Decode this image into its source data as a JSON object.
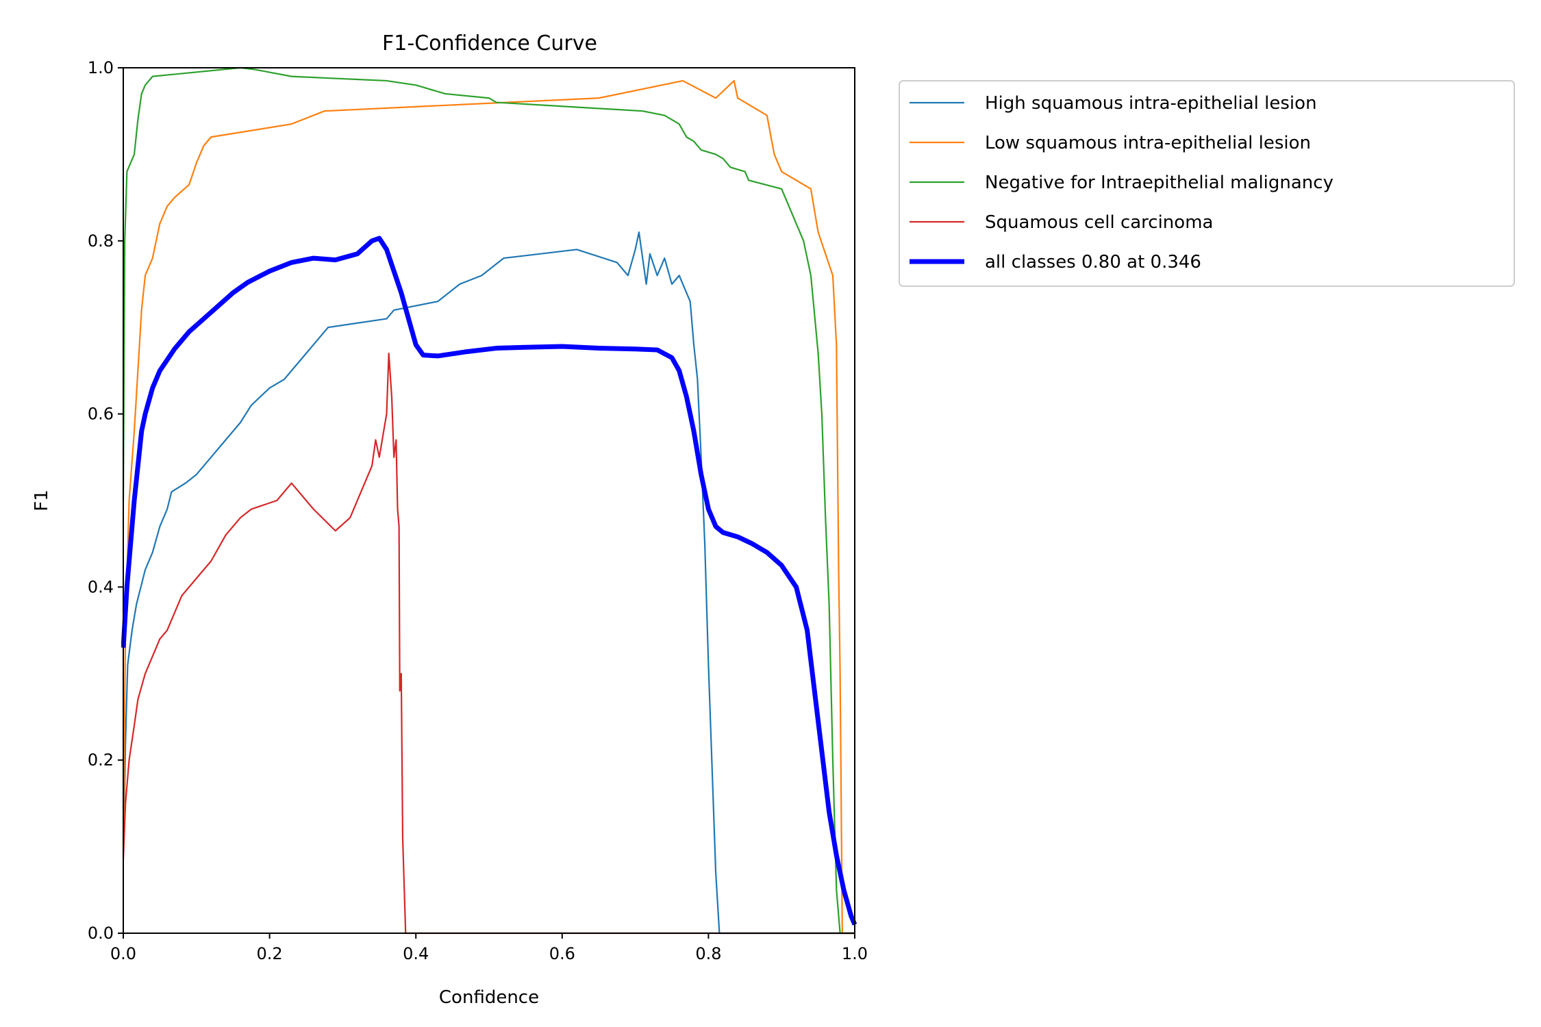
{
  "chart_data": {
    "type": "line",
    "title": "F1-Confidence Curve",
    "xlabel": "Confidence",
    "ylabel": "F1",
    "xlim": [
      0,
      1
    ],
    "ylim": [
      0,
      1
    ],
    "xticks": [
      "0.0",
      "0.2",
      "0.4",
      "0.6",
      "0.8",
      "1.0"
    ],
    "yticks": [
      "0.0",
      "0.2",
      "0.4",
      "0.6",
      "0.8",
      "1.0"
    ],
    "grid": false,
    "legend_position": "outside-right",
    "series": [
      {
        "name": "High squamous intra-epithelial lesion",
        "color": "#1f77b4",
        "width": "thin",
        "points": [
          [
            0.0,
            0.09
          ],
          [
            0.003,
            0.22
          ],
          [
            0.006,
            0.31
          ],
          [
            0.012,
            0.35
          ],
          [
            0.018,
            0.38
          ],
          [
            0.024,
            0.4
          ],
          [
            0.03,
            0.42
          ],
          [
            0.04,
            0.44
          ],
          [
            0.05,
            0.47
          ],
          [
            0.06,
            0.49
          ],
          [
            0.066,
            0.51
          ],
          [
            0.085,
            0.52
          ],
          [
            0.1,
            0.53
          ],
          [
            0.12,
            0.55
          ],
          [
            0.14,
            0.57
          ],
          [
            0.16,
            0.59
          ],
          [
            0.175,
            0.61
          ],
          [
            0.2,
            0.63
          ],
          [
            0.22,
            0.64
          ],
          [
            0.24,
            0.66
          ],
          [
            0.25,
            0.67
          ],
          [
            0.28,
            0.7
          ],
          [
            0.36,
            0.71
          ],
          [
            0.37,
            0.72
          ],
          [
            0.43,
            0.73
          ],
          [
            0.46,
            0.75
          ],
          [
            0.49,
            0.76
          ],
          [
            0.52,
            0.78
          ],
          [
            0.62,
            0.79
          ],
          [
            0.675,
            0.775
          ],
          [
            0.69,
            0.76
          ],
          [
            0.7,
            0.79
          ],
          [
            0.705,
            0.81
          ],
          [
            0.715,
            0.75
          ],
          [
            0.72,
            0.785
          ],
          [
            0.73,
            0.76
          ],
          [
            0.74,
            0.78
          ],
          [
            0.75,
            0.75
          ],
          [
            0.76,
            0.76
          ],
          [
            0.77,
            0.74
          ],
          [
            0.775,
            0.73
          ],
          [
            0.777,
            0.71
          ],
          [
            0.78,
            0.68
          ],
          [
            0.785,
            0.64
          ],
          [
            0.79,
            0.55
          ],
          [
            0.795,
            0.45
          ],
          [
            0.8,
            0.31
          ],
          [
            0.805,
            0.19
          ],
          [
            0.81,
            0.07
          ],
          [
            0.815,
            0.0
          ],
          [
            1.0,
            0.0
          ]
        ]
      },
      {
        "name": "Low squamous intra-epithelial lesion",
        "color": "#ff7f0e",
        "width": "thin",
        "points": [
          [
            0.0,
            0.1
          ],
          [
            0.003,
            0.35
          ],
          [
            0.008,
            0.5
          ],
          [
            0.015,
            0.58
          ],
          [
            0.02,
            0.65
          ],
          [
            0.025,
            0.72
          ],
          [
            0.03,
            0.76
          ],
          [
            0.04,
            0.78
          ],
          [
            0.05,
            0.82
          ],
          [
            0.06,
            0.84
          ],
          [
            0.07,
            0.85
          ],
          [
            0.09,
            0.865
          ],
          [
            0.1,
            0.89
          ],
          [
            0.11,
            0.91
          ],
          [
            0.12,
            0.92
          ],
          [
            0.23,
            0.935
          ],
          [
            0.275,
            0.95
          ],
          [
            0.65,
            0.965
          ],
          [
            0.765,
            0.985
          ],
          [
            0.81,
            0.965
          ],
          [
            0.835,
            0.985
          ],
          [
            0.84,
            0.965
          ],
          [
            0.88,
            0.945
          ],
          [
            0.89,
            0.9
          ],
          [
            0.9,
            0.88
          ],
          [
            0.94,
            0.86
          ],
          [
            0.95,
            0.81
          ],
          [
            0.97,
            0.76
          ],
          [
            0.975,
            0.68
          ],
          [
            0.978,
            0.42
          ],
          [
            0.98,
            0.3
          ],
          [
            0.983,
            0.0
          ],
          [
            1.0,
            0.0
          ]
        ]
      },
      {
        "name": "Negative for Intraepithelial malignancy",
        "color": "#2ca02c",
        "width": "thin",
        "points": [
          [
            0.0,
            0.5
          ],
          [
            0.002,
            0.8
          ],
          [
            0.005,
            0.88
          ],
          [
            0.01,
            0.89
          ],
          [
            0.015,
            0.9
          ],
          [
            0.02,
            0.94
          ],
          [
            0.025,
            0.97
          ],
          [
            0.03,
            0.98
          ],
          [
            0.04,
            0.99
          ],
          [
            0.16,
            1.0
          ],
          [
            0.18,
            0.998
          ],
          [
            0.23,
            0.99
          ],
          [
            0.36,
            0.985
          ],
          [
            0.4,
            0.98
          ],
          [
            0.44,
            0.97
          ],
          [
            0.5,
            0.965
          ],
          [
            0.51,
            0.96
          ],
          [
            0.71,
            0.95
          ],
          [
            0.74,
            0.945
          ],
          [
            0.75,
            0.94
          ],
          [
            0.76,
            0.935
          ],
          [
            0.77,
            0.92
          ],
          [
            0.78,
            0.915
          ],
          [
            0.79,
            0.905
          ],
          [
            0.81,
            0.9
          ],
          [
            0.82,
            0.895
          ],
          [
            0.83,
            0.885
          ],
          [
            0.85,
            0.88
          ],
          [
            0.855,
            0.87
          ],
          [
            0.9,
            0.86
          ],
          [
            0.91,
            0.84
          ],
          [
            0.92,
            0.82
          ],
          [
            0.93,
            0.8
          ],
          [
            0.94,
            0.76
          ],
          [
            0.95,
            0.67
          ],
          [
            0.955,
            0.6
          ],
          [
            0.96,
            0.48
          ],
          [
            0.965,
            0.38
          ],
          [
            0.97,
            0.2
          ],
          [
            0.975,
            0.05
          ],
          [
            0.98,
            0.0
          ],
          [
            1.0,
            0.0
          ]
        ]
      },
      {
        "name": "Squamous cell carcinoma",
        "color": "#d62728",
        "width": "thin",
        "points": [
          [
            0.0,
            0.085
          ],
          [
            0.003,
            0.15
          ],
          [
            0.008,
            0.2
          ],
          [
            0.015,
            0.24
          ],
          [
            0.02,
            0.27
          ],
          [
            0.03,
            0.3
          ],
          [
            0.04,
            0.32
          ],
          [
            0.05,
            0.34
          ],
          [
            0.06,
            0.35
          ],
          [
            0.07,
            0.37
          ],
          [
            0.08,
            0.39
          ],
          [
            0.1,
            0.41
          ],
          [
            0.12,
            0.43
          ],
          [
            0.14,
            0.46
          ],
          [
            0.16,
            0.48
          ],
          [
            0.175,
            0.49
          ],
          [
            0.21,
            0.5
          ],
          [
            0.23,
            0.52
          ],
          [
            0.26,
            0.49
          ],
          [
            0.29,
            0.465
          ],
          [
            0.31,
            0.48
          ],
          [
            0.33,
            0.52
          ],
          [
            0.34,
            0.54
          ],
          [
            0.345,
            0.57
          ],
          [
            0.35,
            0.55
          ],
          [
            0.36,
            0.6
          ],
          [
            0.363,
            0.67
          ],
          [
            0.367,
            0.62
          ],
          [
            0.37,
            0.55
          ],
          [
            0.373,
            0.57
          ],
          [
            0.375,
            0.49
          ],
          [
            0.377,
            0.47
          ],
          [
            0.378,
            0.28
          ],
          [
            0.38,
            0.3
          ],
          [
            0.382,
            0.11
          ],
          [
            0.386,
            0.0
          ],
          [
            1.0,
            0.0
          ]
        ]
      },
      {
        "name": "all classes 0.80 at 0.346",
        "color": "#0000ff",
        "width": "thick",
        "points": [
          [
            0.0,
            0.33
          ],
          [
            0.005,
            0.4
          ],
          [
            0.01,
            0.45
          ],
          [
            0.015,
            0.5
          ],
          [
            0.02,
            0.54
          ],
          [
            0.025,
            0.58
          ],
          [
            0.03,
            0.6
          ],
          [
            0.04,
            0.63
          ],
          [
            0.05,
            0.65
          ],
          [
            0.07,
            0.675
          ],
          [
            0.09,
            0.695
          ],
          [
            0.11,
            0.71
          ],
          [
            0.13,
            0.725
          ],
          [
            0.15,
            0.74
          ],
          [
            0.17,
            0.752
          ],
          [
            0.2,
            0.765
          ],
          [
            0.23,
            0.775
          ],
          [
            0.26,
            0.78
          ],
          [
            0.29,
            0.778
          ],
          [
            0.32,
            0.785
          ],
          [
            0.34,
            0.8
          ],
          [
            0.35,
            0.803
          ],
          [
            0.36,
            0.79
          ],
          [
            0.38,
            0.74
          ],
          [
            0.4,
            0.68
          ],
          [
            0.41,
            0.668
          ],
          [
            0.43,
            0.667
          ],
          [
            0.47,
            0.672
          ],
          [
            0.51,
            0.676
          ],
          [
            0.55,
            0.677
          ],
          [
            0.6,
            0.678
          ],
          [
            0.65,
            0.676
          ],
          [
            0.7,
            0.675
          ],
          [
            0.73,
            0.674
          ],
          [
            0.75,
            0.665
          ],
          [
            0.76,
            0.65
          ],
          [
            0.77,
            0.62
          ],
          [
            0.78,
            0.58
          ],
          [
            0.79,
            0.53
          ],
          [
            0.8,
            0.49
          ],
          [
            0.81,
            0.47
          ],
          [
            0.82,
            0.463
          ],
          [
            0.84,
            0.458
          ],
          [
            0.86,
            0.45
          ],
          [
            0.88,
            0.44
          ],
          [
            0.9,
            0.425
          ],
          [
            0.92,
            0.4
          ],
          [
            0.935,
            0.35
          ],
          [
            0.945,
            0.28
          ],
          [
            0.955,
            0.21
          ],
          [
            0.965,
            0.14
          ],
          [
            0.975,
            0.09
          ],
          [
            0.985,
            0.05
          ],
          [
            0.995,
            0.02
          ],
          [
            1.0,
            0.01
          ]
        ]
      }
    ]
  }
}
